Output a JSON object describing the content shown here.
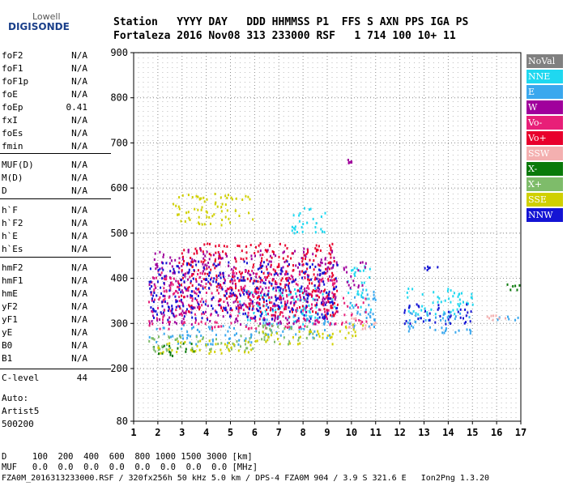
{
  "logo": {
    "top": "Lowell",
    "bottom": "DIGISONDE"
  },
  "header": {
    "row1": "Station   YYYY DAY   DDD HHMMSS P1  FFS S AXN PPS IGA PS",
    "row2": "Fortaleza 2016 Nov08 313 233000 RSF   1 714 100 10+ 11"
  },
  "params": {
    "group1": [
      {
        "name": "foF2",
        "value": "N/A"
      },
      {
        "name": "foF1",
        "value": "N/A"
      },
      {
        "name": "foF1p",
        "value": "N/A"
      },
      {
        "name": "foE",
        "value": "N/A"
      },
      {
        "name": "foEp",
        "value": "0.41"
      },
      {
        "name": "fxI",
        "value": "N/A"
      },
      {
        "name": "foEs",
        "value": "N/A"
      },
      {
        "name": "fmin",
        "value": "N/A"
      }
    ],
    "group2": [
      {
        "name": "MUF(D)",
        "value": "N/A"
      },
      {
        "name": "M(D)",
        "value": "N/A"
      },
      {
        "name": "D",
        "value": "N/A"
      }
    ],
    "group3": [
      {
        "name": "h`F",
        "value": "N/A"
      },
      {
        "name": "h`F2",
        "value": "N/A"
      },
      {
        "name": "h`E",
        "value": "N/A"
      },
      {
        "name": "h`Es",
        "value": "N/A"
      }
    ],
    "group4": [
      {
        "name": "hmF2",
        "value": "N/A"
      },
      {
        "name": "hmF1",
        "value": "N/A"
      },
      {
        "name": "hmE",
        "value": "N/A"
      },
      {
        "name": "yF2",
        "value": "N/A"
      },
      {
        "name": "yF1",
        "value": "N/A"
      },
      {
        "name": "yE",
        "value": "N/A"
      },
      {
        "name": "B0",
        "value": "N/A"
      },
      {
        "name": "B1",
        "value": "N/A"
      }
    ],
    "clevel": {
      "name": "C-level",
      "value": "44"
    }
  },
  "auto": {
    "line1": "Auto:",
    "line2": "Artist5",
    "line3": "500200"
  },
  "bottom": {
    "d_row": "D     100  200  400  600  800 1000 1500 3000 [km]",
    "muf_row": "MUF   0.0  0.0  0.0  0.0  0.0  0.0  0.0  0.0 [MHz]",
    "footer": "FZA0M_2016313233000.RSF / 320fx256h 50 kHz 5.0 km / DPS-4 FZA0M 904 / 3.9 S 321.6 E   Ion2Png 1.3.20"
  },
  "legend": [
    {
      "label": "NoVal",
      "color": "#808080"
    },
    {
      "label": "NNE",
      "color": "#1fd8f0"
    },
    {
      "label": "E",
      "color": "#3aa8ee"
    },
    {
      "label": "W",
      "color": "#a0009c"
    },
    {
      "label": "Vo-",
      "color": "#e81f78"
    },
    {
      "label": "Vo+",
      "color": "#e8002c"
    },
    {
      "label": "SSW",
      "color": "#f4b0b0"
    },
    {
      "label": "X-",
      "color": "#0a7a0a"
    },
    {
      "label": "X+",
      "color": "#7ebc6a"
    },
    {
      "label": "SSE",
      "color": "#d0d000"
    },
    {
      "label": "NNW",
      "color": "#1414d4"
    }
  ],
  "chart_data": {
    "type": "scatter",
    "title": "",
    "xlabel": "",
    "ylabel": "",
    "xlim": [
      1,
      17
    ],
    "ylim": [
      80,
      900
    ],
    "x_ticks": [
      1,
      2,
      3,
      4,
      5,
      6,
      7,
      8,
      9,
      10,
      11,
      12,
      13,
      14,
      15,
      16,
      17
    ],
    "y_ticks": [
      80,
      200,
      300,
      400,
      500,
      600,
      700,
      800,
      900
    ],
    "grid": true,
    "series": [
      {
        "name": "NNE",
        "color": "#1fd8f0",
        "clusters": [
          {
            "x": [
              5.3,
              9.3
            ],
            "y": [
              300,
              380
            ]
          },
          {
            "x": [
              9.8,
              10.8
            ],
            "y": [
              330,
              430
            ]
          },
          {
            "x": [
              12.2,
              15.0
            ],
            "y": [
              320,
              380
            ]
          },
          {
            "x": [
              7.5,
              9.0
            ],
            "y": [
              500,
              560
            ]
          }
        ]
      },
      {
        "name": "E",
        "color": "#3aa8ee",
        "clusters": [
          {
            "x": [
              1.6,
              6.0
            ],
            "y": [
              255,
              300
            ]
          },
          {
            "x": [
              6.0,
              9.2
            ],
            "y": [
              270,
              320
            ]
          },
          {
            "x": [
              9.8,
              11.0
            ],
            "y": [
              290,
              380
            ]
          },
          {
            "x": [
              12.3,
              15.2
            ],
            "y": [
              280,
              330
            ]
          },
          {
            "x": [
              16.0,
              17.0
            ],
            "y": [
              310,
              320
            ]
          }
        ]
      },
      {
        "name": "W",
        "color": "#a0009c",
        "clusters": [
          {
            "x": [
              1.6,
              9.4
            ],
            "y": [
              300,
              470
            ]
          },
          {
            "x": [
              9.8,
              10.0
            ],
            "y": [
              655,
              665
            ]
          },
          {
            "x": [
              9.6,
              10.6
            ],
            "y": [
              380,
              440
            ]
          }
        ]
      },
      {
        "name": "Vo-",
        "color": "#e81f78",
        "clusters": [
          {
            "x": [
              1.6,
              9.4
            ],
            "y": [
              290,
              420
            ]
          },
          {
            "x": [
              9.5,
              10.6
            ],
            "y": [
              300,
              360
            ]
          }
        ]
      },
      {
        "name": "Vo+",
        "color": "#e8002c",
        "clusters": [
          {
            "x": [
              2.8,
              9.4
            ],
            "y": [
              320,
              480
            ]
          }
        ]
      },
      {
        "name": "SSW",
        "color": "#f4b0b0",
        "clusters": [
          {
            "x": [
              9.6,
              11.0
            ],
            "y": [
              290,
              320
            ]
          },
          {
            "x": [
              14.4,
              17.0
            ],
            "y": [
              310,
              320
            ]
          }
        ]
      },
      {
        "name": "X-",
        "color": "#0a7a0a",
        "clusters": [
          {
            "x": [
              1.6,
              3.5
            ],
            "y": [
              230,
              260
            ]
          },
          {
            "x": [
              16.4,
              17.0
            ],
            "y": [
              375,
              390
            ]
          }
        ]
      },
      {
        "name": "X+",
        "color": "#7ebc6a",
        "clusters": [
          {
            "x": [
              1.6,
              6.0
            ],
            "y": [
              240,
              275
            ]
          },
          {
            "x": [
              6.0,
              8.5
            ],
            "y": [
              255,
              300
            ]
          }
        ]
      },
      {
        "name": "SSE",
        "color": "#d0d000",
        "clusters": [
          {
            "x": [
              2.6,
              5.9
            ],
            "y": [
              520,
              590
            ]
          },
          {
            "x": [
              1.6,
              6.0
            ],
            "y": [
              235,
              265
            ]
          },
          {
            "x": [
              6.0,
              9.2
            ],
            "y": [
              255,
              285
            ]
          },
          {
            "x": [
              9.4,
              10.6
            ],
            "y": [
              270,
              300
            ]
          }
        ]
      },
      {
        "name": "NNW",
        "color": "#1414d4",
        "clusters": [
          {
            "x": [
              12.0,
              15.0
            ],
            "y": [
              300,
              345
            ]
          },
          {
            "x": [
              1.6,
              9.4
            ],
            "y": [
              310,
              440
            ]
          },
          {
            "x": [
              13.0,
              13.6
            ],
            "y": [
              415,
              430
            ]
          }
        ]
      }
    ]
  }
}
